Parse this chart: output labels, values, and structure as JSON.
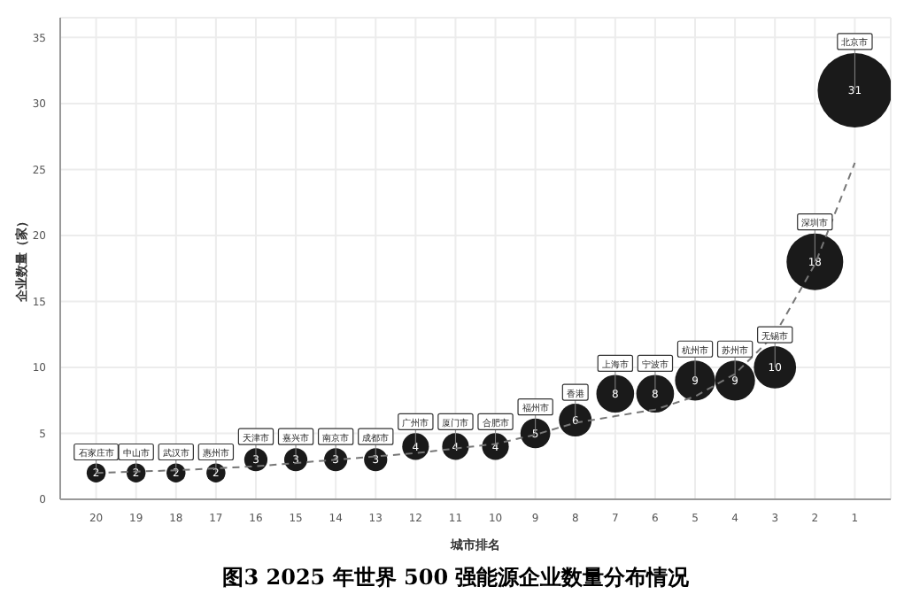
{
  "chart_data": {
    "type": "bubble",
    "title": "图3 2025 年世界 500 强能源企业数量分布情况",
    "xlabel": "城市排名",
    "ylabel": "企业数量（家）",
    "x": [
      20,
      19,
      18,
      17,
      16,
      15,
      14,
      13,
      12,
      11,
      10,
      9,
      8,
      7,
      6,
      5,
      4,
      3,
      2,
      1
    ],
    "xlim": [
      20.9,
      0.1
    ],
    "xticks": [
      20,
      19,
      18,
      17,
      16,
      15,
      14,
      13,
      12,
      11,
      10,
      9,
      8,
      7,
      6,
      5,
      4,
      3,
      2,
      1
    ],
    "ylim": [
      0,
      36.5
    ],
    "yticks": [
      0,
      5,
      10,
      15,
      20,
      25,
      30,
      35
    ],
    "grid": true,
    "series": [
      {
        "color": "#1a1a1a",
        "values": [
          2,
          2,
          2,
          2,
          3,
          3,
          3,
          3,
          4,
          4,
          4,
          5,
          6,
          8,
          8,
          9,
          9,
          10,
          18,
          31
        ],
        "value_labels": [
          "2",
          "2",
          "2",
          "2",
          "3",
          "3",
          "3",
          "3",
          "4",
          "4",
          "4",
          "5",
          "6",
          "8",
          "8",
          "9",
          "9",
          "10",
          "18",
          "31"
        ],
        "sizes": [
          0.065,
          0.065,
          0.065,
          0.065,
          0.097,
          0.097,
          0.097,
          0.097,
          0.129,
          0.129,
          0.129,
          0.161,
          0.194,
          0.258,
          0.258,
          0.29,
          0.29,
          0.323,
          0.581,
          1
        ]
      },
      {
        "type": "line",
        "color": "#777777",
        "line_style": "dashed",
        "x": [
          20,
          18,
          16,
          14,
          12,
          10,
          9,
          8,
          7,
          6,
          5,
          4,
          3,
          2,
          1
        ],
        "values": [
          2,
          2.2,
          2.5,
          3,
          3.5,
          4.2,
          4.9,
          5.8,
          6.3,
          6.8,
          7.8,
          9.5,
          12.5,
          17.8,
          25.5
        ]
      }
    ],
    "annotations": [
      {
        "text": "石家庄市",
        "x": 20,
        "y": 2
      },
      {
        "text": "中山市",
        "x": 19,
        "y": 2
      },
      {
        "text": "武汉市",
        "x": 18,
        "y": 2
      },
      {
        "text": "惠州市",
        "x": 17,
        "y": 2
      },
      {
        "text": "天津市",
        "x": 16,
        "y": 3
      },
      {
        "text": "嘉兴市",
        "x": 15,
        "y": 3
      },
      {
        "text": "南京市",
        "x": 14,
        "y": 3
      },
      {
        "text": "成都市",
        "x": 13,
        "y": 3
      },
      {
        "text": "广州市",
        "x": 12,
        "y": 4
      },
      {
        "text": "厦门市",
        "x": 11,
        "y": 4
      },
      {
        "text": "合肥市",
        "x": 10,
        "y": 4
      },
      {
        "text": "福州市",
        "x": 9,
        "y": 5
      },
      {
        "text": "香港",
        "x": 8,
        "y": 6
      },
      {
        "text": "上海市",
        "x": 7,
        "y": 8
      },
      {
        "text": "宁波市",
        "x": 6,
        "y": 8
      },
      {
        "text": "杭州市",
        "x": 5,
        "y": 9
      },
      {
        "text": "苏州市",
        "x": 4,
        "y": 9
      },
      {
        "text": "无锡市",
        "x": 3,
        "y": 10
      },
      {
        "text": "深圳市",
        "x": 2,
        "y": 18
      },
      {
        "text": "北京市",
        "x": 1,
        "y": 31
      }
    ]
  }
}
